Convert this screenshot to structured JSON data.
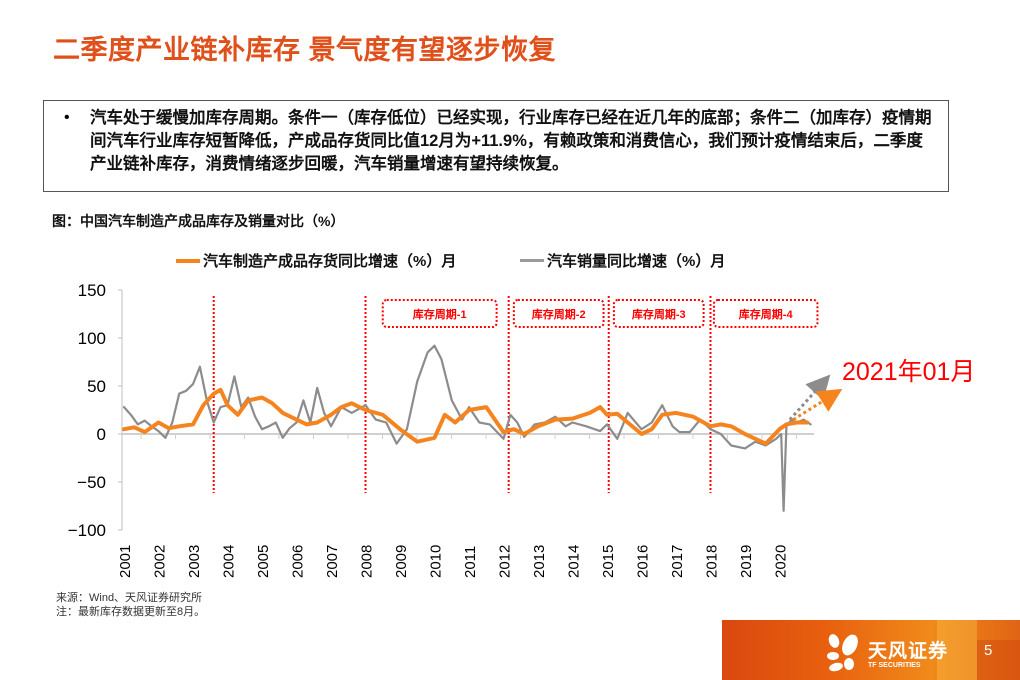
{
  "slide": {
    "title": "二季度产业链补库存 景气度有望逐步恢复",
    "summary_bullet": "•",
    "summary": "汽车处于缓慢加库存周期。条件一（库存低位）已经实现，行业库存已经在近几年的底部；条件二（加库存）疫情期间汽车行业库存短暂降低，产成品存货同比值12月为+11.9%，有赖政策和消费信心，我们预计疫情结束后，二季度产业链补库存，消费情绪逐步回暖，汽车销量增速有望持续恢复。",
    "figure_caption": "图：中国汽车制造产成品库存及销量对比（%）",
    "annotation": "2021年01月",
    "source_line": "来源：Wind、天风证券研究所",
    "note_line": "注：最新库存数据更新至8月。",
    "page_number": "5",
    "brand_name": "天风证券",
    "brand_sub": "TF SECURITIES"
  },
  "colors": {
    "title": "#e0501b",
    "inventory_series": "#f5841f",
    "sales_series": "#8c8c8c",
    "cycle_marker": "#ff0000",
    "annotation": "#ff0000"
  },
  "chart_data": {
    "type": "line",
    "title": "中国汽车制造产成品库存及销量对比（%）",
    "xlabel": "",
    "ylabel": "",
    "ylim": [
      -100,
      150
    ],
    "yticks": [
      150,
      100,
      50,
      0,
      -50,
      -100
    ],
    "ytick_labels": [
      "150",
      "100",
      "50",
      "0",
      "−50",
      "−100"
    ],
    "xticks": [
      "2001",
      "2002",
      "2003",
      "2004",
      "2005",
      "2006",
      "2007",
      "2008",
      "2009",
      "2010",
      "2011",
      "2012",
      "2013",
      "2014",
      "2015",
      "2016",
      "2017",
      "2018",
      "2019",
      "2020"
    ],
    "legend_position": "top",
    "grid": false,
    "series": [
      {
        "name": "汽车制造产成品存货同比增速（%）月",
        "color": "#f5841f",
        "x": [
          2001.0,
          2001.3,
          2001.6,
          2002.0,
          2002.3,
          2002.6,
          2003.0,
          2003.3,
          2003.6,
          2003.8,
          2004.0,
          2004.3,
          2004.6,
          2005.0,
          2005.3,
          2005.6,
          2006.0,
          2006.3,
          2006.6,
          2007.0,
          2007.3,
          2007.6,
          2008.0,
          2008.5,
          2009.0,
          2009.5,
          2010.0,
          2010.3,
          2010.6,
          2011.0,
          2011.5,
          2012.0,
          2012.3,
          2012.6,
          2013.0,
          2013.5,
          2014.0,
          2014.5,
          2014.8,
          2015.0,
          2015.3,
          2015.6,
          2016.0,
          2016.3,
          2016.6,
          2017.0,
          2017.5,
          2018.0,
          2018.3,
          2018.6,
          2019.0,
          2019.3,
          2019.6,
          2020.0,
          2020.2,
          2020.5,
          2020.8
        ],
        "values": [
          5,
          7,
          2,
          12,
          6,
          8,
          10,
          30,
          42,
          46,
          30,
          20,
          35,
          38,
          32,
          22,
          15,
          10,
          12,
          20,
          28,
          32,
          25,
          20,
          5,
          -8,
          -4,
          20,
          12,
          25,
          28,
          2,
          5,
          0,
          8,
          15,
          16,
          22,
          28,
          20,
          21,
          12,
          0,
          5,
          20,
          22,
          18,
          8,
          10,
          8,
          0,
          -5,
          -10,
          5,
          10,
          12,
          12
        ]
      },
      {
        "name": "汽车销量同比增速（%）月",
        "color": "#8c8c8c",
        "x": [
          2001.0,
          2001.2,
          2001.4,
          2001.6,
          2001.8,
          2002.0,
          2002.2,
          2002.4,
          2002.6,
          2002.8,
          2003.0,
          2003.2,
          2003.4,
          2003.6,
          2003.8,
          2004.0,
          2004.2,
          2004.4,
          2004.6,
          2004.8,
          2005.0,
          2005.2,
          2005.4,
          2005.6,
          2005.8,
          2006.0,
          2006.2,
          2006.4,
          2006.6,
          2006.8,
          2007.0,
          2007.3,
          2007.6,
          2008.0,
          2008.3,
          2008.6,
          2008.9,
          2009.2,
          2009.5,
          2009.8,
          2010.0,
          2010.2,
          2010.5,
          2010.8,
          2011.0,
          2011.3,
          2011.6,
          2012.0,
          2012.2,
          2012.4,
          2012.6,
          2012.9,
          2013.2,
          2013.5,
          2013.8,
          2014.0,
          2014.4,
          2014.8,
          2015.0,
          2015.3,
          2015.6,
          2016.0,
          2016.3,
          2016.6,
          2016.9,
          2017.1,
          2017.4,
          2017.7,
          2018.0,
          2018.3,
          2018.6,
          2019.0,
          2019.3,
          2019.6,
          2019.9,
          2020.05,
          2020.12,
          2020.2,
          2020.35,
          2020.5,
          2020.7,
          2020.9
        ],
        "values": [
          28,
          20,
          10,
          14,
          8,
          3,
          -4,
          12,
          42,
          45,
          52,
          70,
          35,
          12,
          28,
          30,
          60,
          28,
          38,
          18,
          5,
          8,
          12,
          -4,
          6,
          12,
          35,
          12,
          48,
          22,
          8,
          28,
          22,
          30,
          15,
          12,
          -10,
          5,
          55,
          85,
          92,
          78,
          35,
          15,
          28,
          12,
          10,
          -5,
          20,
          12,
          -3,
          10,
          12,
          18,
          8,
          12,
          8,
          3,
          10,
          -5,
          22,
          5,
          12,
          30,
          8,
          2,
          2,
          15,
          5,
          0,
          -12,
          -15,
          -8,
          -12,
          -5,
          0,
          -80,
          8,
          15,
          12,
          15,
          10
        ]
      }
    ],
    "cycle_markers": [
      {
        "x": 2003.6,
        "label": ""
      },
      {
        "x": 2008.0,
        "label": ""
      },
      {
        "x": 2012.15,
        "label": ""
      },
      {
        "x": 2015.05,
        "label": ""
      },
      {
        "x": 2018.0,
        "label": ""
      }
    ],
    "cycle_labels": [
      {
        "label": "库存周期-1",
        "x_start": 2008.5,
        "x_end": 2011.8
      },
      {
        "label": "库存周期-2",
        "x_start": 2012.3,
        "x_end": 2014.9
      },
      {
        "label": "库存周期-3",
        "x_start": 2015.2,
        "x_end": 2017.8
      },
      {
        "label": "库存周期-4",
        "x_start": 2018.1,
        "x_end": 2021.1
      }
    ],
    "trend_arrows": [
      {
        "series": "汽车销量同比增速（%）月",
        "from": [
          2020.3,
          15
        ],
        "to": [
          2021.3,
          55
        ]
      },
      {
        "series": "汽车制造产成品存货同比增速（%）月",
        "from": [
          2020.4,
          15
        ],
        "to": [
          2021.6,
          42
        ]
      }
    ],
    "annotation": "2021年01月"
  }
}
